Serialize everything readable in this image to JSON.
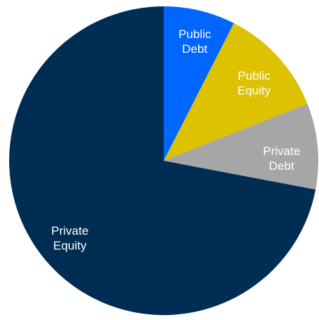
{
  "chart_data": {
    "type": "pie",
    "start": "12 o'clock, clockwise",
    "slices": [
      {
        "label_lines": [
          "Public",
          "Debt"
        ],
        "value": 7.5,
        "color": "#0066ff",
        "label_color": "#ffffff"
      },
      {
        "label_lines": [
          "Public",
          "Equity"
        ],
        "value": 11.5,
        "color": "#dcc200",
        "label_color": "#ffffff"
      },
      {
        "label_lines": [
          "Private",
          "Debt"
        ],
        "value": 9.0,
        "color": "#a6a6a6",
        "label_color": "#ffffff"
      },
      {
        "label_lines": [
          "Private",
          "Equity"
        ],
        "value": 72.0,
        "color": "#002d54",
        "label_color": "#ffffff"
      }
    ]
  }
}
